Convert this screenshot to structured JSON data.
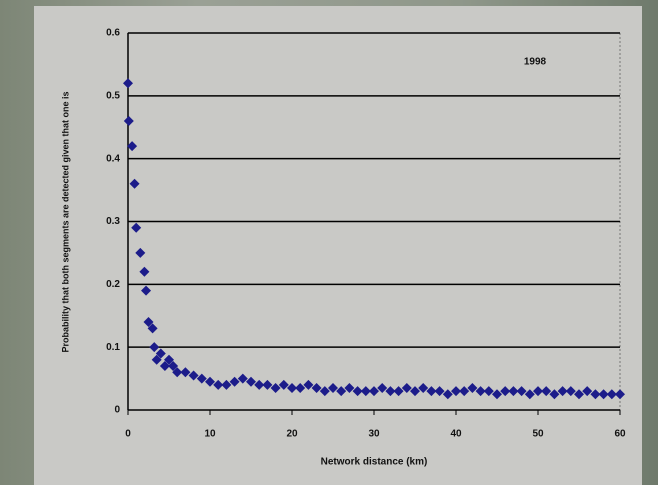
{
  "chart_data": {
    "type": "scatter",
    "annotation": "1998",
    "x_label": "Network distance (km)",
    "y_label": "Probability that both segments are detected given that one is",
    "xlim": [
      0,
      60
    ],
    "xticks": [
      0,
      10,
      20,
      30,
      40,
      50,
      60
    ],
    "ylim": [
      0,
      0.6
    ],
    "yticks": [
      0,
      0.1,
      0.2,
      0.3,
      0.4,
      0.5,
      0.6
    ],
    "grid": true,
    "series": [
      {
        "color": "#1c1c8a",
        "x": [
          0,
          0.1,
          0.5,
          0.8,
          1,
          1.5,
          2,
          2.2,
          2.5,
          3,
          3.2,
          3.5,
          4,
          4.5,
          5,
          5.5,
          6,
          7,
          8,
          9,
          10,
          11,
          12,
          13,
          14,
          15,
          16,
          17,
          18,
          19,
          20,
          21,
          22,
          23,
          24,
          25,
          26,
          27,
          28,
          29,
          30,
          31,
          32,
          33,
          34,
          35,
          36,
          37,
          38,
          39,
          40,
          41,
          42,
          43,
          44,
          45,
          46,
          47,
          48,
          49,
          50,
          51,
          52,
          53,
          54,
          55,
          56,
          57,
          58,
          59,
          60
        ],
        "values": [
          0.52,
          0.46,
          0.42,
          0.36,
          0.29,
          0.25,
          0.22,
          0.19,
          0.14,
          0.13,
          0.1,
          0.08,
          0.09,
          0.07,
          0.08,
          0.07,
          0.06,
          0.06,
          0.055,
          0.05,
          0.045,
          0.04,
          0.04,
          0.045,
          0.05,
          0.045,
          0.04,
          0.04,
          0.035,
          0.04,
          0.035,
          0.035,
          0.04,
          0.035,
          0.03,
          0.035,
          0.03,
          0.035,
          0.03,
          0.03,
          0.03,
          0.035,
          0.03,
          0.03,
          0.035,
          0.03,
          0.035,
          0.03,
          0.03,
          0.025,
          0.03,
          0.03,
          0.035,
          0.03,
          0.03,
          0.025,
          0.03,
          0.03,
          0.03,
          0.025,
          0.03,
          0.03,
          0.025,
          0.03,
          0.03,
          0.025,
          0.03,
          0.025,
          0.025,
          0.025,
          0.025
        ]
      }
    ]
  }
}
